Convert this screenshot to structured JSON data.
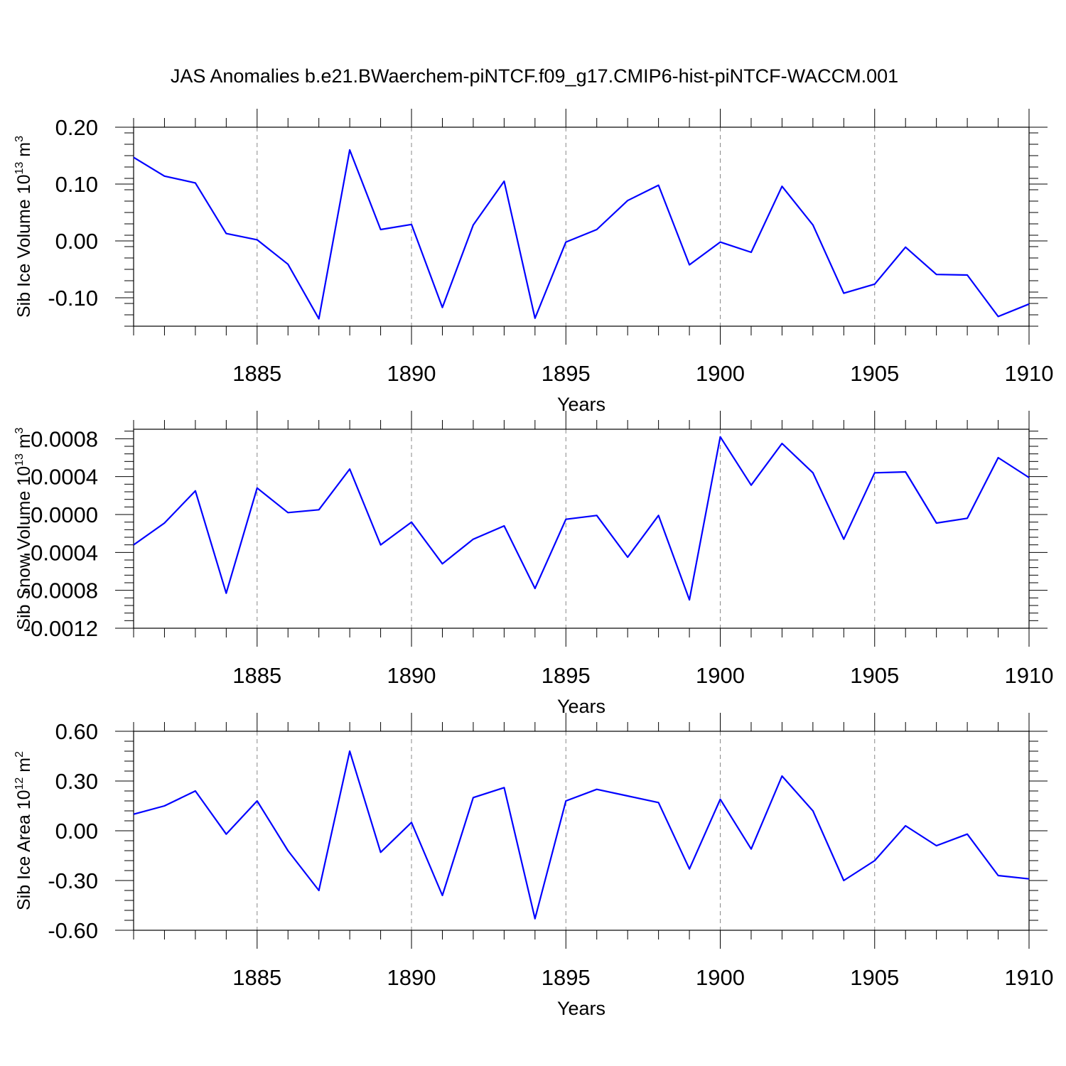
{
  "title": "JAS Anomalies b.e21.BWaerchem-piNTCF.f09_g17.CMIP6-hist-piNTCF-WACCM.001",
  "chart_data": [
    {
      "type": "line",
      "title": "JAS Anomalies b.e21.BWaerchem-piNTCF.f09_g17.CMIP6-hist-piNTCF-WACCM.001",
      "xlabel": "Years",
      "ylabel_parts": [
        "Sib Ice Volume 10",
        "13",
        " m",
        "3"
      ],
      "xlim": [
        1881,
        1910
      ],
      "ylim": [
        -0.15,
        0.2
      ],
      "xticks": [
        1885,
        1890,
        1895,
        1900,
        1905,
        1910
      ],
      "yticks": [
        0.2,
        0.1,
        0.0,
        -0.1
      ],
      "ytick_labels": [
        "0.20",
        "0.10",
        "0.00",
        "-0.10"
      ],
      "grid": "vertical dashed at major x ticks",
      "x": [
        1881,
        1882,
        1883,
        1884,
        1885,
        1886,
        1887,
        1888,
        1889,
        1890,
        1891,
        1892,
        1893,
        1894,
        1895,
        1896,
        1897,
        1898,
        1899,
        1900,
        1901,
        1902,
        1903,
        1904,
        1905,
        1906,
        1907,
        1908,
        1909,
        1910
      ],
      "series": [
        {
          "name": "Sib Ice Volume",
          "color": "#0000ff",
          "values": [
            0.147,
            0.114,
            0.102,
            0.013,
            0.002,
            -0.041,
            -0.137,
            0.16,
            0.02,
            0.029,
            -0.117,
            0.028,
            0.105,
            -0.136,
            -0.002,
            0.02,
            0.071,
            0.098,
            -0.042,
            -0.002,
            -0.02,
            0.096,
            0.028,
            -0.092,
            -0.076,
            -0.011,
            -0.059,
            -0.06,
            -0.133,
            -0.111
          ]
        }
      ]
    },
    {
      "type": "line",
      "xlabel": "Years",
      "ylabel_parts": [
        "Sib Snow Volume 10",
        "13",
        " m",
        "3"
      ],
      "xlim": [
        1881,
        1910
      ],
      "ylim": [
        -0.0012,
        0.0009
      ],
      "xticks": [
        1885,
        1890,
        1895,
        1900,
        1905,
        1910
      ],
      "yticks": [
        0.0008,
        0.0004,
        0.0,
        -0.0004,
        -0.0008,
        -0.0012
      ],
      "ytick_labels": [
        "0.0008",
        "0.0004",
        "0.0000",
        "-0.0004",
        "-0.0008",
        "-0.0012"
      ],
      "grid": "vertical dashed at major x ticks",
      "x": [
        1881,
        1882,
        1883,
        1884,
        1885,
        1886,
        1887,
        1888,
        1889,
        1890,
        1891,
        1892,
        1893,
        1894,
        1895,
        1896,
        1897,
        1898,
        1899,
        1900,
        1901,
        1902,
        1903,
        1904,
        1905,
        1906,
        1907,
        1908,
        1909,
        1910
      ],
      "series": [
        {
          "name": "Sib Snow Volume",
          "color": "#0000ff",
          "values": [
            -0.00032,
            -9e-05,
            0.00025,
            -0.00083,
            0.00028,
            2e-05,
            5e-05,
            0.00048,
            -0.00032,
            -8e-05,
            -0.00052,
            -0.00026,
            -0.00012,
            -0.00078,
            -5e-05,
            -1e-05,
            -0.00045,
            -1e-05,
            -0.0009,
            0.00082,
            0.00031,
            0.00075,
            0.00044,
            -0.00026,
            0.00044,
            0.00045,
            -9e-05,
            -4e-05,
            0.0006,
            0.00039
          ]
        }
      ]
    },
    {
      "type": "line",
      "xlabel": "Years",
      "ylabel_parts": [
        "Sib Ice Area 10",
        "12",
        " m",
        "2"
      ],
      "xlim": [
        1881,
        1910
      ],
      "ylim": [
        -0.6,
        0.6
      ],
      "xticks": [
        1885,
        1890,
        1895,
        1900,
        1905,
        1910
      ],
      "yticks": [
        0.6,
        0.3,
        0.0,
        -0.3,
        -0.6
      ],
      "ytick_labels": [
        "0.60",
        "0.30",
        "0.00",
        "-0.30",
        "-0.60"
      ],
      "grid": "vertical dashed at major x ticks",
      "x": [
        1881,
        1882,
        1883,
        1884,
        1885,
        1886,
        1887,
        1888,
        1889,
        1890,
        1891,
        1892,
        1893,
        1894,
        1895,
        1896,
        1897,
        1898,
        1899,
        1900,
        1901,
        1902,
        1903,
        1904,
        1905,
        1906,
        1907,
        1908,
        1909,
        1910
      ],
      "series": [
        {
          "name": "Sib Ice Area",
          "color": "#0000ff",
          "values": [
            0.1,
            0.15,
            0.24,
            -0.02,
            0.18,
            -0.12,
            -0.36,
            0.48,
            -0.13,
            0.05,
            -0.39,
            0.2,
            0.26,
            -0.53,
            0.18,
            0.25,
            0.21,
            0.17,
            -0.23,
            0.19,
            -0.11,
            0.33,
            0.12,
            -0.3,
            -0.18,
            0.03,
            -0.09,
            -0.02,
            -0.27,
            -0.29
          ]
        }
      ]
    }
  ]
}
